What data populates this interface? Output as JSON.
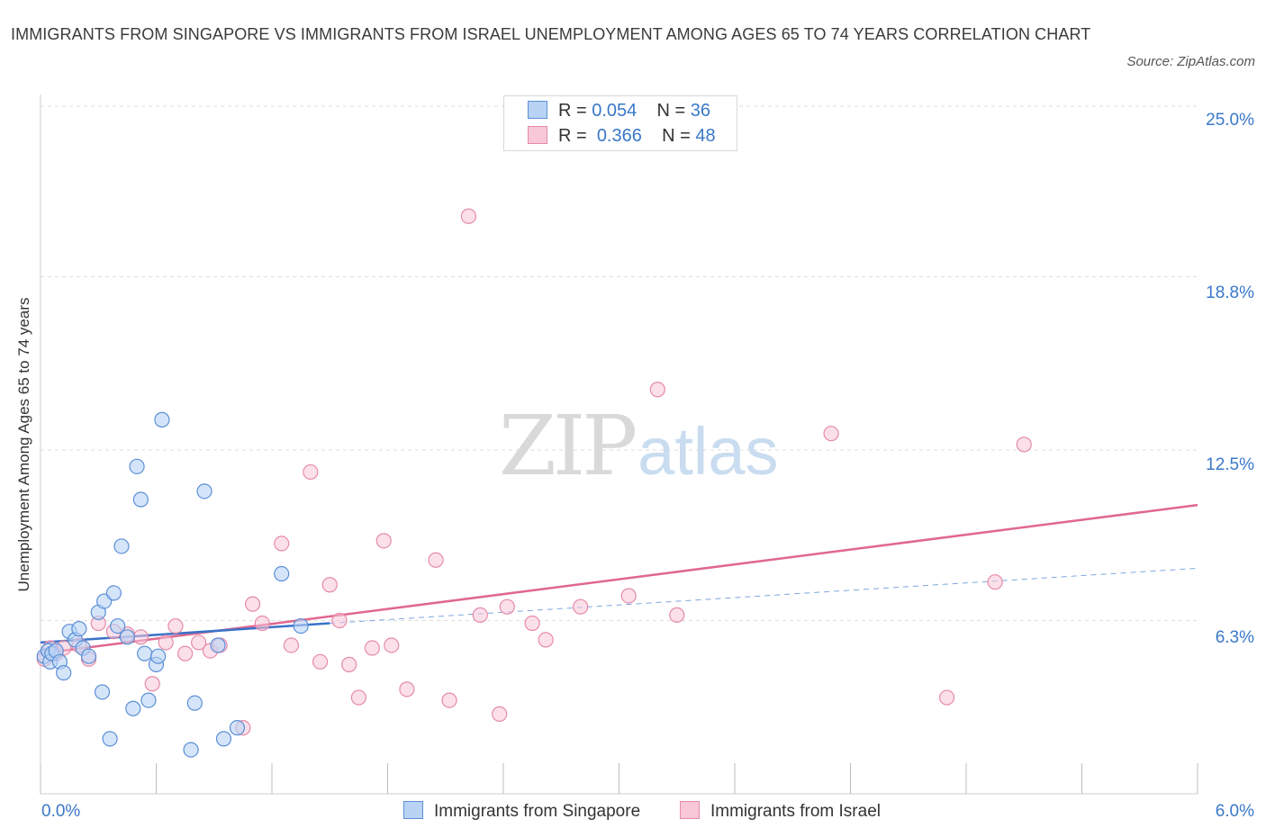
{
  "title": "IMMIGRANTS FROM SINGAPORE VS IMMIGRANTS FROM ISRAEL UNEMPLOYMENT AMONG AGES 65 TO 74 YEARS CORRELATION CHART",
  "source": "Source: ZipAtlas.com",
  "watermark": {
    "zip": "ZIP",
    "atlas": "atlas"
  },
  "legend": {
    "rows": [
      {
        "r_label": "R =",
        "r_value": "0.054",
        "n_label": "N =",
        "n_value": "36"
      },
      {
        "r_label": "R =",
        "r_value": "0.366",
        "n_label": "N =",
        "n_value": "48"
      }
    ]
  },
  "colors": {
    "singapore_fill": "#b9d3f5",
    "singapore_stroke": "#5a8fd6",
    "singapore_line": "#3a72c8",
    "israel_fill": "#f8c7d8",
    "israel_stroke": "#e58aa8",
    "israel_line": "#e0688f",
    "tick_text": "#3a78c9",
    "grid": "#dddddd"
  },
  "chart_data": {
    "type": "scatter",
    "title": "IMMIGRANTS FROM SINGAPORE VS IMMIGRANTS FROM ISRAEL UNEMPLOYMENT AMONG AGES 65 TO 74 YEARS CORRELATION CHART",
    "xlabel": "",
    "ylabel": "Unemployment Among Ages 65 to 74 years",
    "xlim": [
      0,
      6.0
    ],
    "ylim": [
      0,
      25.0
    ],
    "x_tick_labels": [
      "0.0%",
      "6.0%"
    ],
    "y_tick_values": [
      6.3,
      12.5,
      18.8,
      25.0
    ],
    "y_tick_labels": [
      "6.3%",
      "12.5%",
      "18.8%",
      "25.0%"
    ],
    "grid": true,
    "legend_position": "bottom",
    "series": [
      {
        "name": "Immigrants from Singapore",
        "R": 0.054,
        "N": 36,
        "trend": {
          "x": [
            0.0,
            1.5
          ],
          "y": [
            5.5,
            6.2
          ],
          "dashed_extension": {
            "x": [
              1.5,
              6.0
            ],
            "y": [
              6.2,
              8.2
            ]
          }
        },
        "points": [
          [
            0.02,
            5.0
          ],
          [
            0.04,
            5.2
          ],
          [
            0.05,
            4.8
          ],
          [
            0.06,
            5.1
          ],
          [
            0.08,
            5.2
          ],
          [
            0.1,
            4.8
          ],
          [
            0.12,
            4.4
          ],
          [
            0.15,
            5.9
          ],
          [
            0.18,
            5.6
          ],
          [
            0.2,
            6.0
          ],
          [
            0.22,
            5.3
          ],
          [
            0.25,
            5.0
          ],
          [
            0.3,
            6.6
          ],
          [
            0.32,
            3.7
          ],
          [
            0.33,
            7.0
          ],
          [
            0.36,
            2.0
          ],
          [
            0.38,
            7.3
          ],
          [
            0.4,
            6.1
          ],
          [
            0.42,
            9.0
          ],
          [
            0.45,
            5.7
          ],
          [
            0.48,
            3.1
          ],
          [
            0.5,
            11.9
          ],
          [
            0.52,
            10.7
          ],
          [
            0.54,
            5.1
          ],
          [
            0.56,
            3.4
          ],
          [
            0.6,
            4.7
          ],
          [
            0.61,
            5.0
          ],
          [
            0.63,
            13.6
          ],
          [
            0.78,
            1.6
          ],
          [
            0.8,
            3.3
          ],
          [
            0.85,
            11.0
          ],
          [
            0.92,
            5.4
          ],
          [
            0.95,
            2.0
          ],
          [
            1.02,
            2.4
          ],
          [
            1.25,
            8.0
          ],
          [
            1.35,
            6.1
          ]
        ]
      },
      {
        "name": "Immigrants from Israel",
        "R": 0.366,
        "N": 48,
        "trend": {
          "x": [
            0.0,
            6.0
          ],
          "y": [
            5.1,
            10.5
          ]
        },
        "points": [
          [
            0.02,
            4.9
          ],
          [
            0.05,
            5.3
          ],
          [
            0.08,
            5.1
          ],
          [
            0.12,
            5.3
          ],
          [
            0.2,
            5.4
          ],
          [
            0.25,
            4.9
          ],
          [
            0.3,
            6.2
          ],
          [
            0.38,
            5.9
          ],
          [
            0.45,
            5.8
          ],
          [
            0.52,
            5.7
          ],
          [
            0.58,
            4.0
          ],
          [
            0.65,
            5.5
          ],
          [
            0.7,
            6.1
          ],
          [
            0.75,
            5.1
          ],
          [
            0.82,
            5.5
          ],
          [
            0.88,
            5.2
          ],
          [
            0.93,
            5.4
          ],
          [
            1.05,
            2.4
          ],
          [
            1.1,
            6.9
          ],
          [
            1.15,
            6.2
          ],
          [
            1.25,
            9.1
          ],
          [
            1.3,
            5.4
          ],
          [
            1.4,
            11.7
          ],
          [
            1.45,
            4.8
          ],
          [
            1.5,
            7.6
          ],
          [
            1.55,
            6.3
          ],
          [
            1.6,
            4.7
          ],
          [
            1.65,
            3.5
          ],
          [
            1.72,
            5.3
          ],
          [
            1.78,
            9.2
          ],
          [
            1.82,
            5.4
          ],
          [
            1.9,
            3.8
          ],
          [
            2.05,
            8.5
          ],
          [
            2.12,
            3.4
          ],
          [
            2.22,
            21.0
          ],
          [
            2.28,
            6.5
          ],
          [
            2.38,
            2.9
          ],
          [
            2.42,
            6.8
          ],
          [
            2.55,
            6.2
          ],
          [
            2.62,
            5.6
          ],
          [
            2.8,
            6.8
          ],
          [
            3.05,
            7.2
          ],
          [
            3.2,
            14.7
          ],
          [
            3.3,
            6.5
          ],
          [
            4.1,
            13.1
          ],
          [
            4.7,
            3.5
          ],
          [
            4.95,
            7.7
          ],
          [
            5.1,
            12.7
          ]
        ]
      }
    ]
  }
}
